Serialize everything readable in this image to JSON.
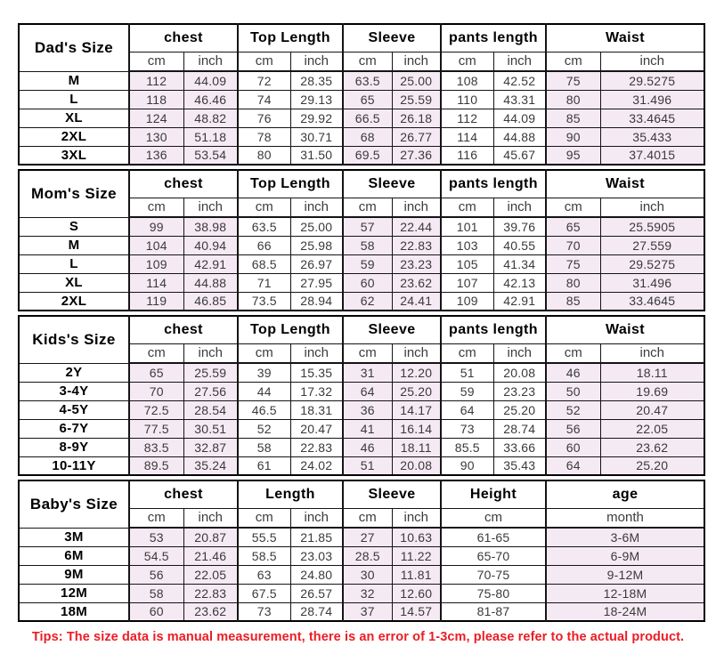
{
  "styles": {
    "tint_color": "#f5eaf3",
    "tips_color": "#ed1c24",
    "border_color": "#000000",
    "text_color": "#3a3a3a"
  },
  "tips": "Tips: The size data is manual measurement, there is an error of 1-3cm, please refer to the actual product.",
  "chart_data": [
    {
      "type": "table",
      "title": "Dad's Size",
      "column_groups": [
        {
          "label": "chest",
          "units": [
            "cm",
            "inch"
          ],
          "tinted": true
        },
        {
          "label": "Top Length",
          "units": [
            "cm",
            "inch"
          ],
          "tinted": false
        },
        {
          "label": "Sleeve",
          "units": [
            "cm",
            "inch"
          ],
          "tinted": true
        },
        {
          "label": "pants length",
          "units": [
            "cm",
            "inch"
          ],
          "tinted": false
        },
        {
          "label": "Waist",
          "units": [
            "cm",
            "inch"
          ],
          "tinted": true
        }
      ],
      "rows": [
        {
          "size": "M",
          "values": [
            "112",
            "44.09",
            "72",
            "28.35",
            "63.5",
            "25.00",
            "108",
            "42.52",
            "75",
            "29.5275"
          ]
        },
        {
          "size": "L",
          "values": [
            "118",
            "46.46",
            "74",
            "29.13",
            "65",
            "25.59",
            "110",
            "43.31",
            "80",
            "31.496"
          ]
        },
        {
          "size": "XL",
          "values": [
            "124",
            "48.82",
            "76",
            "29.92",
            "66.5",
            "26.18",
            "112",
            "44.09",
            "85",
            "33.4645"
          ]
        },
        {
          "size": "2XL",
          "values": [
            "130",
            "51.18",
            "78",
            "30.71",
            "68",
            "26.77",
            "114",
            "44.88",
            "90",
            "35.433"
          ]
        },
        {
          "size": "3XL",
          "values": [
            "136",
            "53.54",
            "80",
            "31.50",
            "69.5",
            "27.36",
            "116",
            "45.67",
            "95",
            "37.4015"
          ]
        }
      ]
    },
    {
      "type": "table",
      "title": "Mom's Size",
      "column_groups": [
        {
          "label": "chest",
          "units": [
            "cm",
            "inch"
          ],
          "tinted": true
        },
        {
          "label": "Top Length",
          "units": [
            "cm",
            "inch"
          ],
          "tinted": false
        },
        {
          "label": "Sleeve",
          "units": [
            "cm",
            "inch"
          ],
          "tinted": true
        },
        {
          "label": "pants length",
          "units": [
            "cm",
            "inch"
          ],
          "tinted": false
        },
        {
          "label": "Waist",
          "units": [
            "cm",
            "inch"
          ],
          "tinted": true
        }
      ],
      "rows": [
        {
          "size": "S",
          "values": [
            "99",
            "38.98",
            "63.5",
            "25.00",
            "57",
            "22.44",
            "101",
            "39.76",
            "65",
            "25.5905"
          ]
        },
        {
          "size": "M",
          "values": [
            "104",
            "40.94",
            "66",
            "25.98",
            "58",
            "22.83",
            "103",
            "40.55",
            "70",
            "27.559"
          ]
        },
        {
          "size": "L",
          "values": [
            "109",
            "42.91",
            "68.5",
            "26.97",
            "59",
            "23.23",
            "105",
            "41.34",
            "75",
            "29.5275"
          ]
        },
        {
          "size": "XL",
          "values": [
            "114",
            "44.88",
            "71",
            "27.95",
            "60",
            "23.62",
            "107",
            "42.13",
            "80",
            "31.496"
          ]
        },
        {
          "size": "2XL",
          "values": [
            "119",
            "46.85",
            "73.5",
            "28.94",
            "62",
            "24.41",
            "109",
            "42.91",
            "85",
            "33.4645"
          ]
        }
      ]
    },
    {
      "type": "table",
      "title": "Kids's Size",
      "column_groups": [
        {
          "label": "chest",
          "units": [
            "cm",
            "inch"
          ],
          "tinted": true
        },
        {
          "label": "Top Length",
          "units": [
            "cm",
            "inch"
          ],
          "tinted": false
        },
        {
          "label": "Sleeve",
          "units": [
            "cm",
            "inch"
          ],
          "tinted": true
        },
        {
          "label": "pants length",
          "units": [
            "cm",
            "inch"
          ],
          "tinted": false
        },
        {
          "label": "Waist",
          "units": [
            "cm",
            "inch"
          ],
          "tinted": true
        }
      ],
      "rows": [
        {
          "size": "2Y",
          "values": [
            "65",
            "25.59",
            "39",
            "15.35",
            "31",
            "12.20",
            "51",
            "20.08",
            "46",
            "18.11"
          ]
        },
        {
          "size": "3-4Y",
          "values": [
            "70",
            "27.56",
            "44",
            "17.32",
            "64",
            "25.20",
            "59",
            "23.23",
            "50",
            "19.69"
          ]
        },
        {
          "size": "4-5Y",
          "values": [
            "72.5",
            "28.54",
            "46.5",
            "18.31",
            "36",
            "14.17",
            "64",
            "25.20",
            "52",
            "20.47"
          ]
        },
        {
          "size": "6-7Y",
          "values": [
            "77.5",
            "30.51",
            "52",
            "20.47",
            "41",
            "16.14",
            "73",
            "28.74",
            "56",
            "22.05"
          ]
        },
        {
          "size": "8-9Y",
          "values": [
            "83.5",
            "32.87",
            "58",
            "22.83",
            "46",
            "18.11",
            "85.5",
            "33.66",
            "60",
            "23.62"
          ]
        },
        {
          "size": "10-11Y",
          "values": [
            "89.5",
            "35.24",
            "61",
            "24.02",
            "51",
            "20.08",
            "90",
            "35.43",
            "64",
            "25.20"
          ]
        }
      ]
    },
    {
      "type": "table",
      "title": "Baby's Size",
      "column_groups": [
        {
          "label": "chest",
          "units": [
            "cm",
            "inch"
          ],
          "tinted": true
        },
        {
          "label": "Length",
          "units": [
            "cm",
            "inch"
          ],
          "tinted": false
        },
        {
          "label": "Sleeve",
          "units": [
            "cm",
            "inch"
          ],
          "tinted": true
        },
        {
          "label": "Height",
          "units": [
            "cm"
          ],
          "tinted": false
        },
        {
          "label": "age",
          "units": [
            "month"
          ],
          "tinted": true
        }
      ],
      "rows": [
        {
          "size": "3M",
          "values": [
            "53",
            "20.87",
            "55.5",
            "21.85",
            "27",
            "10.63",
            "61-65",
            "3-6M"
          ]
        },
        {
          "size": "6M",
          "values": [
            "54.5",
            "21.46",
            "58.5",
            "23.03",
            "28.5",
            "11.22",
            "65-70",
            "6-9M"
          ]
        },
        {
          "size": "9M",
          "values": [
            "56",
            "22.05",
            "63",
            "24.80",
            "30",
            "11.81",
            "70-75",
            "9-12M"
          ]
        },
        {
          "size": "12M",
          "values": [
            "58",
            "22.83",
            "67.5",
            "26.57",
            "32",
            "12.60",
            "75-80",
            "12-18M"
          ]
        },
        {
          "size": "18M",
          "values": [
            "60",
            "23.62",
            "73",
            "28.74",
            "37",
            "14.57",
            "81-87",
            "18-24M"
          ]
        }
      ]
    }
  ]
}
